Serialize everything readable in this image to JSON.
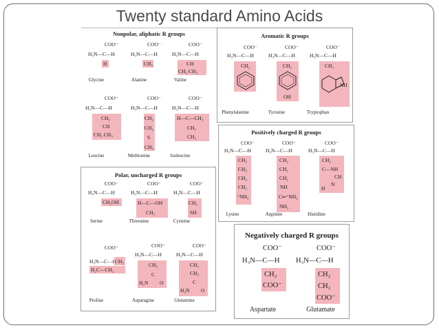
{
  "slide_title": "Twenty standard Amino Acids",
  "groups": {
    "nonpolar": "Nonpolar, aliphatic R groups",
    "aromatic": "Aromatic R groups",
    "positive": "Positively charged R groups",
    "polar": "Polar, uncharged R groups",
    "negative": "Negatively charged R groups"
  },
  "common": {
    "coo": "COO⁻",
    "nh3": "H₃N—C—H",
    "h": "|"
  },
  "acids": {
    "glycine": {
      "name": "Glycine",
      "r": "H"
    },
    "alanine": {
      "name": "Alanine",
      "r": "CH₃"
    },
    "valine": {
      "name": "Valine",
      "r1": "CH",
      "r2": "CH₃  CH₃"
    },
    "leucine": {
      "name": "Leucine",
      "r1": "CH₂",
      "r2": "CH",
      "r3": "CH₃  CH₃"
    },
    "methionine": {
      "name": "Methionine",
      "r1": "CH₂",
      "r2": "CH₂",
      "r3": "S",
      "r4": "CH₃"
    },
    "isoleucine": {
      "name": "Isoleucine",
      "r1": "H—C—CH₃",
      "r2": "CH₂",
      "r3": "CH₃"
    },
    "phenylalanine": {
      "name": "Phenylalanine",
      "r1": "CH₂"
    },
    "tyrosine": {
      "name": "Tyrosine",
      "r1": "CH₂",
      "r2": "OH"
    },
    "tryptophan": {
      "name": "Tryptophan",
      "r1": "CH₂",
      "r2": "NH"
    },
    "lysine": {
      "name": "Lysine",
      "r": [
        "CH₂",
        "CH₂",
        "CH₂",
        "CH₂",
        "⁺NH₃"
      ]
    },
    "arginine": {
      "name": "Arginine",
      "r": [
        "CH₂",
        "CH₂",
        "CH₂",
        "NH",
        "C═⁺NH₂",
        "NH₂"
      ]
    },
    "histidine": {
      "name": "Histidine",
      "r": [
        "CH₂",
        "C—NH",
        "CH",
        "N",
        "H"
      ]
    },
    "serine": {
      "name": "Serine",
      "r": "CH₂OH"
    },
    "threonine": {
      "name": "Threonine",
      "r1": "H—C—OH",
      "r2": "CH₃"
    },
    "cysteine": {
      "name": "Cysteine",
      "r1": "CH₂",
      "r2": "SH"
    },
    "proline": {
      "name": "Proline",
      "r1": "CH₂",
      "r2": "H₂C—CH₂"
    },
    "asparagine": {
      "name": "Asparagine",
      "r1": "CH₂",
      "r2": "C",
      "r3": "H₂N",
      "r4": "O"
    },
    "glutamine": {
      "name": "Glutamine",
      "r1": "CH₂",
      "r2": "CH₂",
      "r3": "C",
      "r4": "H₂N",
      "r5": "O"
    },
    "aspartate": {
      "name": "Aspartate",
      "r1": "CH₂",
      "r2": "COO⁻"
    },
    "glutamate": {
      "name": "Glutamate",
      "r1": "CH₂",
      "r2": "CH₂",
      "r3": "COO⁻"
    }
  }
}
